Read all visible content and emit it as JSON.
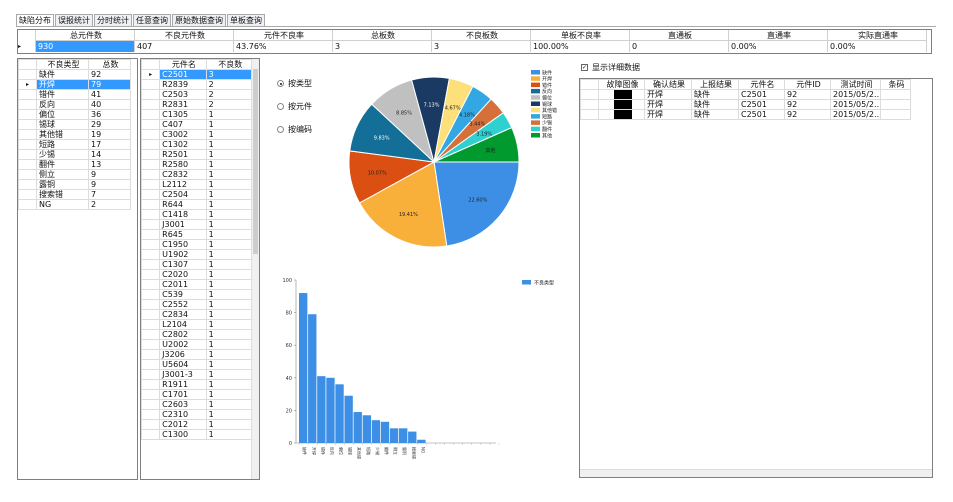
{
  "tabs": [
    "缺陷分布",
    "误报统计",
    "分时统计",
    "任意查询",
    "原始数据查询",
    "单板查询"
  ],
  "summary": {
    "headers": [
      "总元件数",
      "不良元件数",
      "元件不良率",
      "总板数",
      "不良板数",
      "单板不良率",
      "直通板",
      "直通率",
      "实际直通率"
    ],
    "values": [
      "930",
      "407",
      "43.76%",
      "3",
      "3",
      "100.00%",
      "0",
      "0.00%",
      "0.00%"
    ]
  },
  "defect_table": {
    "headers": [
      "不良类型",
      "总数"
    ],
    "rows": [
      [
        "缺件",
        "92"
      ],
      [
        "开焊",
        "79"
      ],
      [
        "错件",
        "41"
      ],
      [
        "反向",
        "40"
      ],
      [
        "偏位",
        "36"
      ],
      [
        "锡球",
        "29"
      ],
      [
        "其他错",
        "19"
      ],
      [
        "短路",
        "17"
      ],
      [
        "少锡",
        "14"
      ],
      [
        "翻件",
        "13"
      ],
      [
        "侧立",
        "9"
      ],
      [
        "露铜",
        "9"
      ],
      [
        "搜索错",
        "7"
      ],
      [
        "NG",
        "2"
      ]
    ],
    "selected_row": 1
  },
  "component_table": {
    "headers": [
      "元件名",
      "不良数"
    ],
    "rows": [
      [
        "C2501",
        "3"
      ],
      [
        "R2839",
        "2"
      ],
      [
        "C2503",
        "2"
      ],
      [
        "R2831",
        "2"
      ],
      [
        "C1305",
        "1"
      ],
      [
        "C407",
        "1"
      ],
      [
        "C3002",
        "1"
      ],
      [
        "C1302",
        "1"
      ],
      [
        "R2501",
        "1"
      ],
      [
        "R2580",
        "1"
      ],
      [
        "C2832",
        "1"
      ],
      [
        "L2112",
        "1"
      ],
      [
        "C2504",
        "1"
      ],
      [
        "R644",
        "1"
      ],
      [
        "C1418",
        "1"
      ],
      [
        "J3001",
        "1"
      ],
      [
        "R645",
        "1"
      ],
      [
        "C1950",
        "1"
      ],
      [
        "U1902",
        "1"
      ],
      [
        "C1307",
        "1"
      ],
      [
        "C2020",
        "1"
      ],
      [
        "C2011",
        "1"
      ],
      [
        "C539",
        "1"
      ],
      [
        "C2552",
        "1"
      ],
      [
        "C2834",
        "1"
      ],
      [
        "L2104",
        "1"
      ],
      [
        "C2802",
        "1"
      ],
      [
        "U2002",
        "1"
      ],
      [
        "J3206",
        "1"
      ],
      [
        "U5604",
        "1"
      ],
      [
        "J3001-3",
        "1"
      ],
      [
        "R1911",
        "1"
      ],
      [
        "C1701",
        "1"
      ],
      [
        "C2603",
        "1"
      ],
      [
        "C2310",
        "1"
      ],
      [
        "C2012",
        "1"
      ],
      [
        "C1300",
        "1"
      ]
    ],
    "selected_row": 0
  },
  "radios": [
    {
      "label": "按类型",
      "checked": true
    },
    {
      "label": "按元件",
      "checked": false
    },
    {
      "label": "按编码",
      "checked": false
    }
  ],
  "show_detail": {
    "label": "显示详细数据",
    "checked": true
  },
  "detail_table": {
    "headers": [
      "故障图像",
      "确认结果",
      "上报结果",
      "元件名",
      "元件ID",
      "测试时间",
      "条码"
    ],
    "rows": [
      [
        "",
        "开焊",
        "缺件",
        "C2501",
        "92",
        "2015/05/2...",
        ""
      ],
      [
        "",
        "开焊",
        "缺件",
        "C2501",
        "92",
        "2015/05/2...",
        ""
      ],
      [
        "",
        "开焊",
        "缺件",
        "C2501",
        "92",
        "2015/05/2...",
        ""
      ]
    ]
  },
  "chart_data": [
    {
      "type": "pie",
      "labels": [
        "缺件",
        "开焊",
        "错件",
        "反向",
        "偏位",
        "锡球",
        "其他错",
        "短路",
        "少锡",
        "翻件",
        "其他"
      ],
      "values": [
        22.6,
        19.41,
        10.07,
        9.83,
        8.85,
        7.13,
        4.67,
        4.18,
        3.44,
        3.19,
        6.63
      ],
      "data_labels": [
        "22.60%",
        "19.41%",
        "10.07%",
        "9.83%",
        "8.85%",
        "7.13%",
        "4.67%",
        "4.18%",
        "3.44%",
        "3.19%",
        "其他"
      ],
      "colors": [
        "#3d8fe6",
        "#f8b03b",
        "#dc4f12",
        "#146f98",
        "#c0c0c0",
        "#1b3a63",
        "#fde07a",
        "#33a7e3",
        "#d5703a",
        "#2fd0d0",
        "#009a2e"
      ],
      "legend": [
        "缺件",
        "开焊",
        "错件",
        "反向",
        "偏位",
        "锡球",
        "其他错",
        "短路",
        "少锡",
        "翻件",
        "其他"
      ],
      "legend_placement": "top-right"
    },
    {
      "type": "bar",
      "series": [
        {
          "name": "不良类型",
          "values": [
            92,
            79,
            41,
            40,
            36,
            29,
            19,
            17,
            14,
            13,
            9,
            9,
            7,
            2
          ]
        }
      ],
      "categories": [
        "缺件",
        "开焊",
        "错件",
        "反向",
        "偏位",
        "锡球",
        "其他错",
        "短路",
        "少锡",
        "翻件",
        "侧立",
        "露铜",
        "搜索错",
        "NG"
      ],
      "yticks": [
        "0",
        "20",
        "40",
        "60",
        "80",
        "100"
      ],
      "ylim": [
        0,
        100
      ],
      "color": "#3d8fe6",
      "legend_placement": "top-right"
    }
  ]
}
